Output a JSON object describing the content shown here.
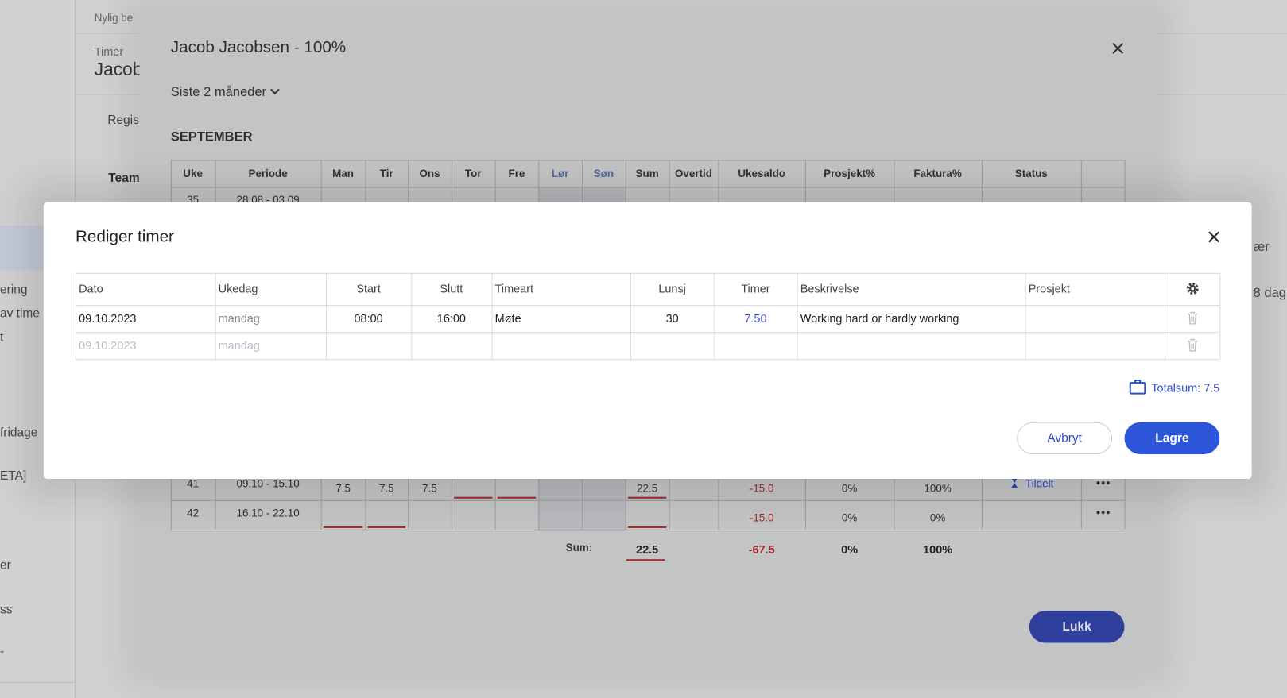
{
  "background": {
    "breadcrumb": "Nylig be",
    "label": "Timer",
    "name": "Jacob",
    "tab": "Regis",
    "team": "Team",
    "sidebar": [
      "ering",
      "av time",
      "t",
      "fridage",
      "ETA]",
      "er",
      "ss",
      "-"
    ],
    "right": [
      "ær",
      "8 dag"
    ]
  },
  "week_dialog": {
    "title": "Jacob Jacobsen - 100%",
    "period": "Siste 2 måneder",
    "month": "SEPTEMBER",
    "columns": [
      "Uke",
      "Periode",
      "Man",
      "Tir",
      "Ons",
      "Tor",
      "Fre",
      "Lør",
      "Søn",
      "Sum",
      "Overtid",
      "Ukesaldo",
      "Prosjekt%",
      "Faktura%",
      "Status"
    ],
    "rows": [
      {
        "cells": [
          "35",
          "28.08 - 03.09",
          null,
          null,
          null,
          null,
          null,
          null,
          null,
          null,
          null,
          null,
          null,
          null,
          null
        ],
        "flagged": []
      },
      {
        "cells": [
          "41",
          "09.10 - 15.10",
          "7.5",
          "7.5",
          "7.5",
          null,
          null,
          null,
          null,
          "22.5",
          null,
          "-15.0",
          "0%",
          "100%",
          "Tildelt"
        ],
        "flagged": [
          5,
          6,
          9
        ]
      },
      {
        "cells": [
          "42",
          "16.10 - 22.10",
          null,
          null,
          null,
          null,
          null,
          null,
          null,
          null,
          null,
          "-15.0",
          "0%",
          "0%",
          null
        ],
        "flagged": [
          2,
          3,
          9
        ]
      }
    ],
    "sum": {
      "label": "Sum:",
      "sum": "22.5",
      "ukesaldo": "-67.5",
      "prosjekt": "0%",
      "faktura": "100%"
    },
    "close": "Lukk"
  },
  "edit_dialog": {
    "title": "Rediger timer",
    "columns": [
      "Dato",
      "Ukedag",
      "Start",
      "Slutt",
      "Timeart",
      "Lunsj",
      "Timer",
      "Beskrivelse",
      "Prosjekt"
    ],
    "rows": [
      [
        "09.10.2023",
        "mandag",
        "08:00",
        "16:00",
        "Møte",
        "30",
        "7.50",
        "Working hard or hardly working",
        null
      ],
      [
        "09.10.2023",
        "mandag",
        null,
        null,
        null,
        null,
        null,
        null,
        null
      ]
    ],
    "total": "Totalsum: 7.5",
    "cancel": "Avbryt",
    "save": "Lagre"
  }
}
